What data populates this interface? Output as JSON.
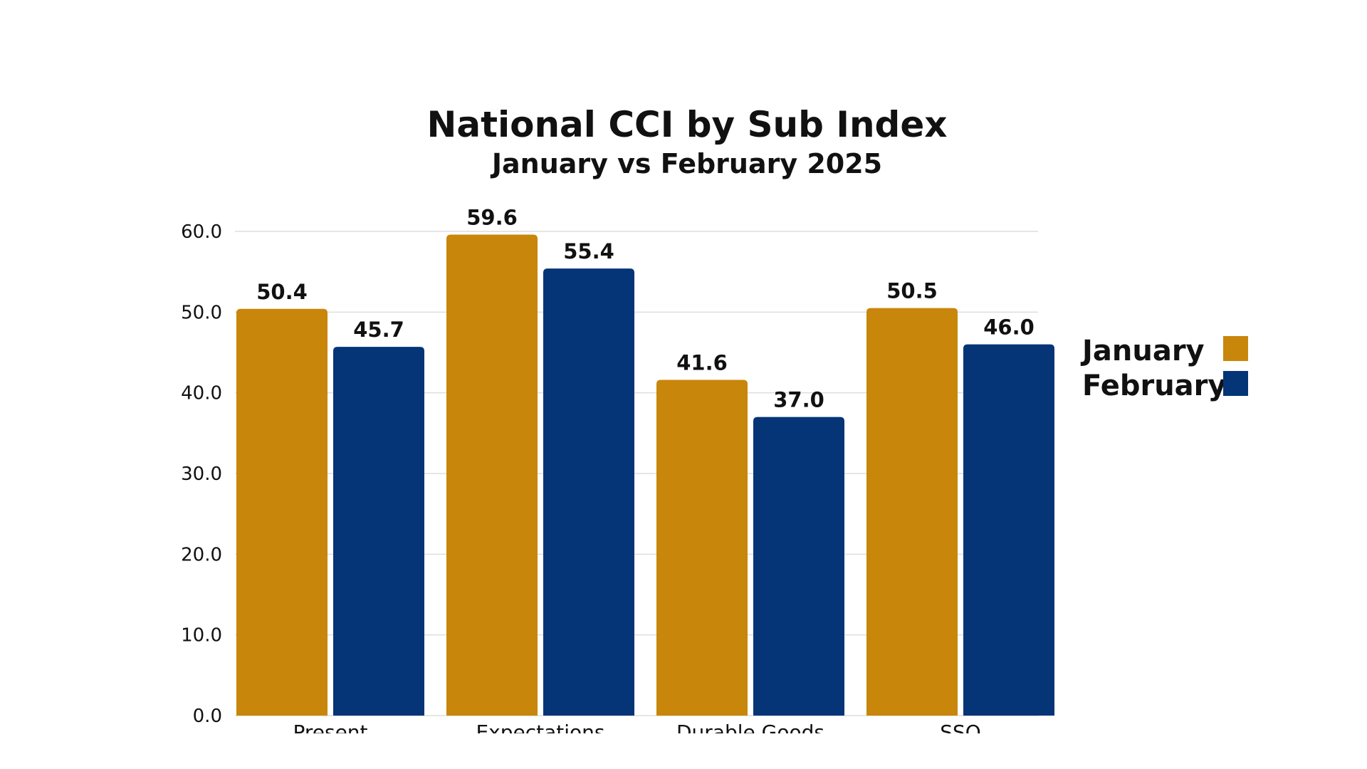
{
  "chart_data": {
    "type": "bar",
    "title": "National CCI by Sub Index",
    "subtitle": "January vs February 2025",
    "categories": [
      "Present",
      "Expectations",
      "Durable Goods",
      "SSQ"
    ],
    "series": [
      {
        "name": "January",
        "color": "#C8860B",
        "values": [
          50.4,
          59.6,
          41.6,
          50.5
        ]
      },
      {
        "name": "February",
        "color": "#053477",
        "values": [
          45.7,
          55.4,
          37.0,
          46.0
        ]
      }
    ],
    "ylim": [
      0,
      60
    ],
    "yticks": [
      "0.0",
      "10.0",
      "20.0",
      "30.0",
      "40.0",
      "50.0",
      "60.0"
    ],
    "grid": true,
    "legend_position": "right"
  }
}
